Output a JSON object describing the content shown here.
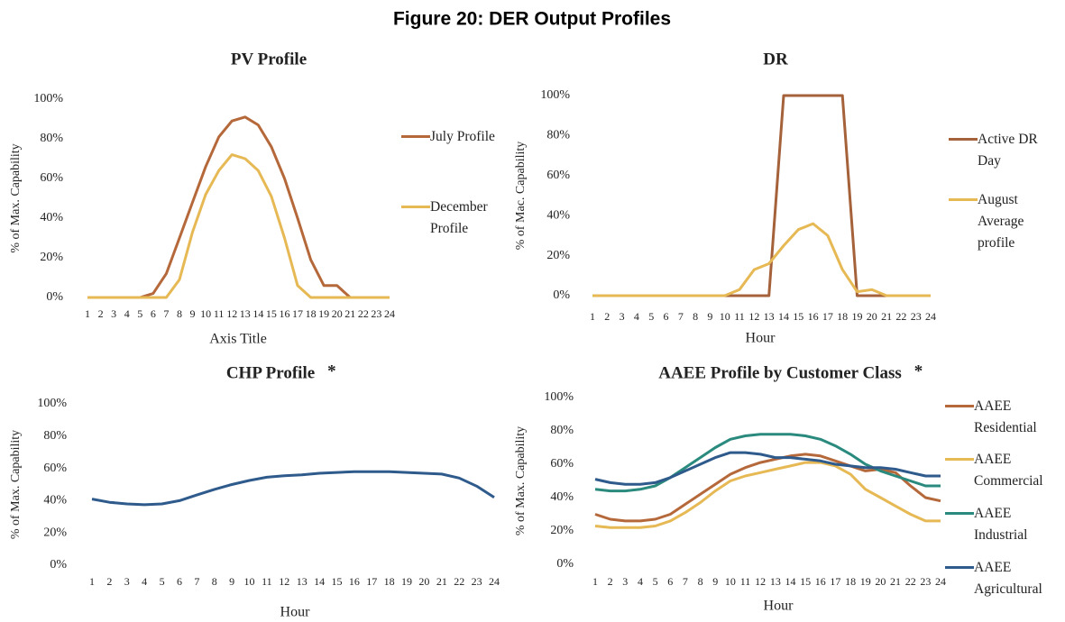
{
  "figure_title": "Figure 20: DER Output Profiles",
  "chart_data": [
    {
      "type": "line",
      "title": "PV Profile",
      "x_label": "Axis Title",
      "y_label": "% of Max. Capability",
      "categories": [
        1,
        2,
        3,
        4,
        5,
        6,
        7,
        8,
        9,
        10,
        11,
        12,
        13,
        14,
        15,
        16,
        17,
        18,
        19,
        20,
        21,
        22,
        23,
        24
      ],
      "ylim": [
        0,
        100
      ],
      "yticks": [
        {
          "value": 0,
          "label": "0%"
        },
        {
          "value": 20,
          "label": "20%"
        },
        {
          "value": 40,
          "label": "40%"
        },
        {
          "value": 60,
          "label": "60%"
        },
        {
          "value": 80,
          "label": "80%"
        },
        {
          "value": 100,
          "label": "100%"
        }
      ],
      "series": [
        {
          "name": "July Profile",
          "color": "#b5683a",
          "values": [
            0,
            0,
            0,
            0,
            0,
            2,
            12,
            30,
            48,
            66,
            81,
            89,
            91,
            87,
            76,
            60,
            40,
            19,
            6,
            6,
            0,
            0,
            0,
            0
          ]
        },
        {
          "name": "December Profile",
          "color": "#e6b955",
          "values": [
            0,
            0,
            0,
            0,
            0,
            0,
            0,
            9,
            33,
            52,
            64,
            72,
            70,
            64,
            51,
            30,
            6,
            0,
            0,
            0,
            0,
            0,
            0,
            0
          ]
        }
      ]
    },
    {
      "type": "line",
      "title": "DR",
      "x_label": "Hour",
      "y_label": "% of Mac. Capability",
      "categories": [
        1,
        2,
        3,
        4,
        5,
        6,
        7,
        8,
        9,
        10,
        11,
        12,
        13,
        14,
        15,
        16,
        17,
        18,
        19,
        20,
        21,
        22,
        23,
        24
      ],
      "ylim": [
        0,
        100
      ],
      "yticks": [
        {
          "value": 0,
          "label": "0%"
        },
        {
          "value": 20,
          "label": "20%"
        },
        {
          "value": 40,
          "label": "40%"
        },
        {
          "value": 60,
          "label": "60%"
        },
        {
          "value": 80,
          "label": "80%"
        },
        {
          "value": 100,
          "label": "100%"
        }
      ],
      "series": [
        {
          "name": "Active DR Day",
          "color": "#a5623a",
          "values": [
            0,
            0,
            0,
            0,
            0,
            0,
            0,
            0,
            0,
            0,
            0,
            0,
            0,
            100,
            100,
            100,
            100,
            100,
            0,
            0,
            0,
            0,
            0,
            0
          ]
        },
        {
          "name": "August Average profile",
          "color": "#e6b955",
          "values": [
            0,
            0,
            0,
            0,
            0,
            0,
            0,
            0,
            0,
            0,
            3,
            13,
            16,
            25,
            33,
            36,
            30,
            13,
            2,
            3,
            0,
            0,
            0,
            0
          ]
        }
      ]
    },
    {
      "type": "line",
      "title": "CHP Profile",
      "annotation": "*",
      "x_label": "Hour",
      "y_label": "% of Max. Capability",
      "categories": [
        1,
        2,
        3,
        4,
        5,
        6,
        7,
        8,
        9,
        10,
        11,
        12,
        13,
        14,
        15,
        16,
        17,
        18,
        19,
        20,
        21,
        22,
        23,
        24
      ],
      "ylim": [
        0,
        100
      ],
      "yticks": [
        {
          "value": 0,
          "label": "0%"
        },
        {
          "value": 20,
          "label": "20%"
        },
        {
          "value": 40,
          "label": "40%"
        },
        {
          "value": 60,
          "label": "60%"
        },
        {
          "value": 80,
          "label": "80%"
        },
        {
          "value": 100,
          "label": "100%"
        }
      ],
      "color": "#2e5a8c",
      "values": [
        41,
        39,
        38,
        37.5,
        38,
        40,
        43.5,
        47,
        50,
        52.5,
        54.5,
        55.5,
        56,
        57,
        57.5,
        58,
        58,
        58,
        57.5,
        57,
        56.5,
        54,
        49,
        42
      ]
    },
    {
      "type": "line",
      "title": "AAEE Profile by Customer Class",
      "annotation": "*",
      "x_label": "Hour",
      "y_label": "% of Max. Capability",
      "categories": [
        1,
        2,
        3,
        4,
        5,
        6,
        7,
        8,
        9,
        10,
        11,
        12,
        13,
        14,
        15,
        16,
        17,
        18,
        19,
        20,
        21,
        22,
        23,
        24
      ],
      "ylim": [
        0,
        100
      ],
      "yticks": [
        {
          "value": 0,
          "label": "0%"
        },
        {
          "value": 20,
          "label": "20%"
        },
        {
          "value": 40,
          "label": "40%"
        },
        {
          "value": 60,
          "label": "60%"
        },
        {
          "value": 80,
          "label": "80%"
        },
        {
          "value": 100,
          "label": "100%"
        }
      ],
      "series": [
        {
          "name": "AAEE Residential",
          "color": "#b5683a",
          "values": [
            30,
            27,
            26,
            26,
            27,
            30,
            36,
            42,
            48,
            54,
            58,
            61,
            63,
            65,
            66,
            65,
            62,
            59,
            56,
            57,
            55,
            47,
            40,
            38
          ]
        },
        {
          "name": "AAEE Commercial",
          "color": "#e6b955",
          "values": [
            23,
            22,
            22,
            22,
            23,
            26,
            31,
            37,
            44,
            50,
            53,
            55,
            57,
            59,
            61,
            61,
            59,
            54,
            45,
            40,
            35,
            30,
            26,
            26
          ]
        },
        {
          "name": "AAEE Industrial",
          "color": "#2a8a7e",
          "values": [
            45,
            44,
            44,
            45,
            47,
            52,
            58,
            64,
            70,
            75,
            77,
            78,
            78,
            78,
            77,
            75,
            71,
            66,
            60,
            56,
            53,
            50,
            47,
            47
          ]
        },
        {
          "name": "AAEE Agricultural",
          "color": "#2e5a8c",
          "values": [
            51,
            49,
            48,
            48,
            49,
            52,
            56,
            60,
            64,
            67,
            67,
            66,
            64,
            64,
            63,
            62,
            60,
            59,
            58,
            58,
            57,
            55,
            53,
            53
          ]
        }
      ]
    }
  ]
}
